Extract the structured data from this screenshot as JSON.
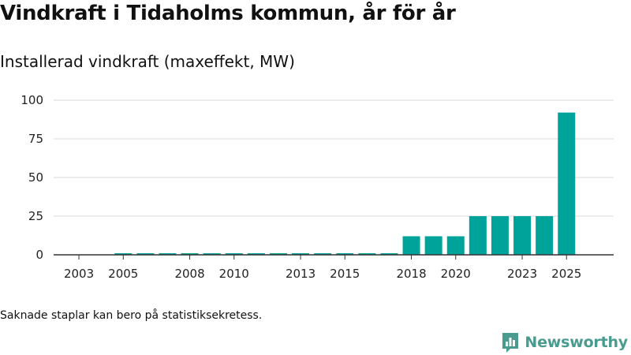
{
  "header": {
    "title": "Vindkraft i Tidaholms kommun, år för år",
    "subtitle": "Installerad vindkraft (maxeffekt, MW)"
  },
  "footnote": "Saknade staplar kan bero på statistiksekretess.",
  "brand": {
    "name": "Newsworthy",
    "icon": "newsworthy-logo-icon"
  },
  "colors": {
    "bar": "#00a39a",
    "grid": "#d9d9d9",
    "axis": "#333333",
    "brand": "#4a9b8f"
  },
  "chart_data": {
    "type": "bar",
    "title": "Installerad vindkraft (maxeffekt, MW)",
    "xlabel": "",
    "ylabel": "",
    "ylim": [
      0,
      100
    ],
    "yticks": [
      0,
      25,
      50,
      75,
      100
    ],
    "xtick_labels": [
      "2003",
      "2005",
      "2008",
      "2010",
      "2013",
      "2015",
      "2018",
      "2020",
      "2023",
      "2025"
    ],
    "categories": [
      "2003",
      "2004",
      "2005",
      "2006",
      "2007",
      "2008",
      "2009",
      "2010",
      "2011",
      "2012",
      "2013",
      "2014",
      "2015",
      "2016",
      "2017",
      "2018",
      "2019",
      "2020",
      "2021",
      "2022",
      "2023",
      "2024",
      "2025"
    ],
    "values": [
      0,
      0,
      1,
      1,
      1,
      1,
      1,
      1,
      1,
      1,
      1,
      1,
      1,
      1,
      1,
      12,
      12,
      12,
      25,
      25,
      25,
      25,
      92
    ],
    "grid": true
  }
}
